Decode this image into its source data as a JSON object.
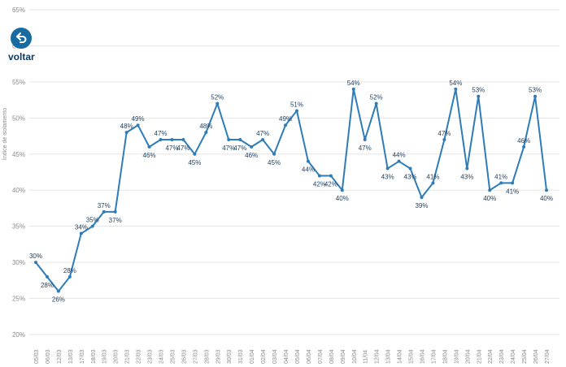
{
  "back_button": {
    "label": "voltar",
    "icon": "undo-arrow-icon"
  },
  "chart_data": {
    "type": "line",
    "title": "",
    "xlabel": "",
    "ylabel": "Índice de isolamento",
    "ylim": [
      20,
      65
    ],
    "ytick_step": 5,
    "ytick_suffix": "%",
    "grid": true,
    "legend_position": "none",
    "categories": [
      "05/03",
      "06/03",
      "12/03",
      "13/03",
      "17/03",
      "18/03",
      "19/03",
      "20/03",
      "21/03",
      "22/03",
      "23/03",
      "24/03",
      "25/03",
      "26/03",
      "27/03",
      "28/03",
      "29/03",
      "30/03",
      "31/03",
      "01/04",
      "02/04",
      "03/04",
      "04/04",
      "05/04",
      "06/04",
      "07/04",
      "08/04",
      "09/04",
      "10/04",
      "11/04",
      "12/04",
      "13/04",
      "14/04",
      "15/04",
      "16/04",
      "17/04",
      "18/04",
      "19/04",
      "20/04",
      "21/04",
      "22/04",
      "23/04",
      "24/04",
      "25/04",
      "26/04",
      "27/04"
    ],
    "values": [
      30,
      28,
      26,
      28,
      34,
      35,
      37,
      37,
      48,
      49,
      46,
      47,
      47,
      47,
      45,
      48,
      52,
      47,
      47,
      46,
      47,
      45,
      49,
      51,
      44,
      42,
      42,
      40,
      54,
      47,
      52,
      43,
      44,
      43,
      39,
      41,
      47,
      54,
      43,
      53,
      40,
      41,
      41,
      46,
      53,
      40
    ],
    "point_label_suffix": "%",
    "colors": {
      "line": "#2e7cb8",
      "point_label": "#1d3d5c",
      "axis_label": "#8a8a8a",
      "grid": "#e6e6e6",
      "back_icon_bg": "#176ba0",
      "back_text": "#0d3c61"
    }
  }
}
